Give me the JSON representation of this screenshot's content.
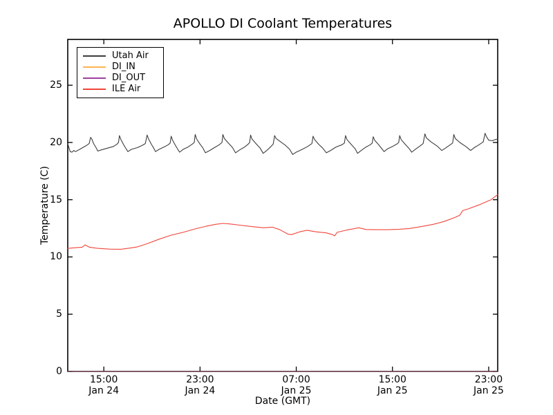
{
  "title": "APOLLO DI Coolant Temperatures",
  "axes": {
    "x": {
      "label": "Date (GMT)",
      "range_hours": [
        0,
        35.75
      ],
      "ticks": [
        {
          "t": 3,
          "time": "15:00",
          "date": "Jan 24"
        },
        {
          "t": 11,
          "time": "23:00",
          "date": "Jan 24"
        },
        {
          "t": 19,
          "time": "07:00",
          "date": "Jan 25"
        },
        {
          "t": 27,
          "time": "15:00",
          "date": "Jan 25"
        },
        {
          "t": 35,
          "time": "23:00",
          "date": "Jan 25"
        }
      ]
    },
    "y": {
      "label": "Temperature (C)",
      "range": [
        0,
        29
      ],
      "ticks": [
        0,
        5,
        10,
        15,
        20,
        25
      ]
    }
  },
  "legend": {
    "items": [
      {
        "label": "Utah Air",
        "color": "#3c3c3c"
      },
      {
        "label": "DI_IN",
        "color": "#ffb450"
      },
      {
        "label": "DI_OUT",
        "color": "#9c3fa0"
      },
      {
        "label": "ILE Air",
        "color": "#f0453a"
      }
    ]
  },
  "chart_data": {
    "type": "line",
    "title": "APOLLO DI Coolant Temperatures",
    "xlabel": "Date (GMT)",
    "ylabel": "Temperature (C)",
    "x_unit": "hours since Jan 24 12:00 GMT",
    "xlim": [
      0,
      35.75
    ],
    "ylim": [
      0,
      29
    ],
    "grid": false,
    "legend_position": "upper left",
    "series": [
      {
        "name": "Utah Air",
        "color": "#3c3c3c",
        "points": [
          [
            0,
            19.9
          ],
          [
            0.2,
            19.2
          ],
          [
            0.35,
            19.15
          ],
          [
            0.5,
            19.3
          ],
          [
            0.65,
            19.2
          ],
          [
            1.0,
            19.4
          ],
          [
            1.5,
            19.7
          ],
          [
            1.78,
            19.9
          ],
          [
            1.9,
            20.45
          ],
          [
            2.0,
            20.3
          ],
          [
            2.15,
            19.9
          ],
          [
            2.35,
            19.55
          ],
          [
            2.5,
            19.25
          ],
          [
            2.8,
            19.35
          ],
          [
            3.3,
            19.5
          ],
          [
            3.8,
            19.65
          ],
          [
            4.1,
            19.85
          ],
          [
            4.22,
            20.0
          ],
          [
            4.3,
            20.6
          ],
          [
            4.42,
            20.25
          ],
          [
            4.65,
            19.8
          ],
          [
            4.85,
            19.45
          ],
          [
            5.0,
            19.2
          ],
          [
            5.3,
            19.4
          ],
          [
            5.8,
            19.55
          ],
          [
            6.2,
            19.75
          ],
          [
            6.45,
            19.9
          ],
          [
            6.6,
            20.65
          ],
          [
            6.72,
            20.3
          ],
          [
            6.95,
            19.85
          ],
          [
            7.15,
            19.5
          ],
          [
            7.3,
            19.2
          ],
          [
            7.6,
            19.4
          ],
          [
            8.0,
            19.6
          ],
          [
            8.35,
            19.8
          ],
          [
            8.52,
            19.95
          ],
          [
            8.6,
            20.55
          ],
          [
            8.72,
            20.2
          ],
          [
            8.95,
            19.75
          ],
          [
            9.15,
            19.4
          ],
          [
            9.3,
            19.15
          ],
          [
            9.6,
            19.4
          ],
          [
            10.0,
            19.6
          ],
          [
            10.35,
            19.85
          ],
          [
            10.52,
            20.0
          ],
          [
            10.6,
            20.7
          ],
          [
            10.72,
            20.3
          ],
          [
            11.0,
            19.85
          ],
          [
            11.25,
            19.5
          ],
          [
            11.45,
            19.1
          ],
          [
            11.8,
            19.3
          ],
          [
            12.2,
            19.55
          ],
          [
            12.6,
            19.8
          ],
          [
            12.82,
            20.0
          ],
          [
            12.9,
            20.7
          ],
          [
            13.02,
            20.35
          ],
          [
            13.35,
            19.95
          ],
          [
            13.7,
            19.55
          ],
          [
            13.95,
            19.1
          ],
          [
            14.3,
            19.35
          ],
          [
            14.7,
            19.6
          ],
          [
            15.0,
            19.85
          ],
          [
            15.13,
            20.0
          ],
          [
            15.2,
            20.65
          ],
          [
            15.32,
            20.3
          ],
          [
            15.65,
            19.9
          ],
          [
            16.0,
            19.5
          ],
          [
            16.25,
            19.05
          ],
          [
            16.55,
            19.3
          ],
          [
            16.9,
            19.65
          ],
          [
            17.08,
            19.85
          ],
          [
            17.2,
            20.6
          ],
          [
            17.32,
            20.35
          ],
          [
            17.7,
            20.05
          ],
          [
            18.1,
            19.75
          ],
          [
            18.45,
            19.4
          ],
          [
            18.7,
            18.95
          ],
          [
            19.0,
            19.15
          ],
          [
            19.5,
            19.4
          ],
          [
            19.95,
            19.65
          ],
          [
            20.3,
            19.9
          ],
          [
            20.4,
            20.55
          ],
          [
            20.52,
            20.25
          ],
          [
            20.85,
            19.85
          ],
          [
            21.2,
            19.5
          ],
          [
            21.5,
            19.1
          ],
          [
            21.85,
            19.3
          ],
          [
            22.3,
            19.6
          ],
          [
            22.8,
            19.8
          ],
          [
            23.0,
            19.95
          ],
          [
            23.1,
            20.6
          ],
          [
            23.22,
            20.25
          ],
          [
            23.55,
            19.85
          ],
          [
            23.9,
            19.45
          ],
          [
            24.1,
            19.05
          ],
          [
            24.4,
            19.3
          ],
          [
            24.8,
            19.6
          ],
          [
            25.15,
            19.8
          ],
          [
            25.32,
            19.95
          ],
          [
            25.4,
            20.5
          ],
          [
            25.52,
            20.2
          ],
          [
            25.85,
            19.8
          ],
          [
            26.15,
            19.4
          ],
          [
            26.3,
            19.2
          ],
          [
            26.6,
            19.45
          ],
          [
            27.0,
            19.65
          ],
          [
            27.35,
            19.85
          ],
          [
            27.52,
            20.0
          ],
          [
            27.6,
            20.6
          ],
          [
            27.72,
            20.25
          ],
          [
            28.05,
            19.85
          ],
          [
            28.4,
            19.45
          ],
          [
            28.6,
            19.15
          ],
          [
            28.9,
            19.4
          ],
          [
            29.3,
            19.7
          ],
          [
            29.55,
            19.9
          ],
          [
            29.7,
            20.75
          ],
          [
            29.82,
            20.4
          ],
          [
            30.2,
            20.05
          ],
          [
            30.7,
            19.7
          ],
          [
            31.1,
            19.3
          ],
          [
            31.4,
            19.5
          ],
          [
            31.8,
            19.8
          ],
          [
            32.0,
            19.95
          ],
          [
            32.1,
            20.7
          ],
          [
            32.22,
            20.35
          ],
          [
            32.6,
            20.0
          ],
          [
            33.1,
            19.65
          ],
          [
            33.5,
            19.3
          ],
          [
            33.8,
            19.55
          ],
          [
            34.2,
            19.8
          ],
          [
            34.55,
            20.05
          ],
          [
            34.7,
            20.8
          ],
          [
            34.82,
            20.5
          ],
          [
            35.0,
            20.2
          ],
          [
            35.3,
            20.15
          ],
          [
            35.55,
            20.25
          ],
          [
            35.75,
            20.3
          ]
        ]
      },
      {
        "name": "DI_IN",
        "color": "#ffb450",
        "opacity": 0.55,
        "points": [
          [
            0,
            0
          ],
          [
            35.75,
            0
          ]
        ]
      },
      {
        "name": "DI_OUT",
        "color": "#9c3fa0",
        "opacity": 0.55,
        "points": [
          [
            0,
            0
          ],
          [
            35.75,
            0
          ]
        ]
      },
      {
        "name": "ILE Air",
        "color": "#f0453a",
        "points": [
          [
            0,
            10.75
          ],
          [
            0.6,
            10.8
          ],
          [
            1.2,
            10.85
          ],
          [
            1.45,
            11.05
          ],
          [
            1.8,
            10.85
          ],
          [
            2.5,
            10.75
          ],
          [
            3.5,
            10.68
          ],
          [
            4.4,
            10.67
          ],
          [
            5.2,
            10.78
          ],
          [
            5.8,
            10.88
          ],
          [
            6.6,
            11.15
          ],
          [
            7.6,
            11.55
          ],
          [
            8.6,
            11.9
          ],
          [
            9.6,
            12.15
          ],
          [
            10.6,
            12.45
          ],
          [
            11.5,
            12.68
          ],
          [
            12.3,
            12.85
          ],
          [
            12.9,
            12.93
          ],
          [
            13.5,
            12.88
          ],
          [
            14.3,
            12.78
          ],
          [
            15.3,
            12.65
          ],
          [
            16.3,
            12.55
          ],
          [
            17.0,
            12.6
          ],
          [
            17.6,
            12.4
          ],
          [
            18.3,
            12.0
          ],
          [
            18.6,
            11.95
          ],
          [
            19.3,
            12.2
          ],
          [
            19.9,
            12.33
          ],
          [
            20.6,
            12.2
          ],
          [
            21.5,
            12.1
          ],
          [
            22.0,
            11.95
          ],
          [
            22.2,
            11.85
          ],
          [
            22.4,
            12.15
          ],
          [
            23.2,
            12.35
          ],
          [
            24.2,
            12.55
          ],
          [
            24.8,
            12.4
          ],
          [
            25.6,
            12.38
          ],
          [
            26.6,
            12.38
          ],
          [
            27.6,
            12.42
          ],
          [
            28.4,
            12.48
          ],
          [
            29.4,
            12.65
          ],
          [
            30.4,
            12.85
          ],
          [
            31.3,
            13.1
          ],
          [
            32.2,
            13.45
          ],
          [
            32.6,
            13.65
          ],
          [
            32.85,
            14.05
          ],
          [
            33.3,
            14.2
          ],
          [
            34.2,
            14.55
          ],
          [
            35.2,
            15.0
          ],
          [
            35.75,
            15.45
          ]
        ]
      }
    ]
  }
}
